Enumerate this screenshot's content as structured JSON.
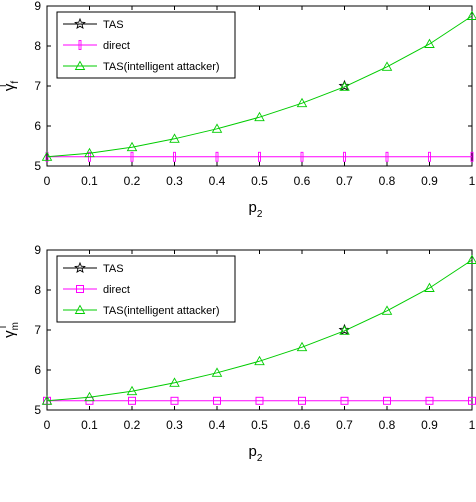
{
  "chart_data": [
    {
      "type": "line",
      "xlabel": "p",
      "xlabel_sub": "2",
      "ylabel": "γ",
      "ylabel_sub": "f",
      "ylabel_sup": "l",
      "xlim": [
        0,
        1
      ],
      "ylim": [
        5,
        9
      ],
      "xticks": [
        "0",
        "0.1",
        "0.2",
        "0.3",
        "0.4",
        "0.5",
        "0.6",
        "0.7",
        "0.8",
        "0.9",
        "1"
      ],
      "yticks": [
        "5",
        "6",
        "7",
        "8",
        "9"
      ],
      "grid": false,
      "legend_position": "top-left",
      "x": [
        0,
        0.1,
        0.2,
        0.3,
        0.4,
        0.5,
        0.6,
        0.7,
        0.8,
        0.9,
        1
      ],
      "series": [
        {
          "name": "TAS",
          "color": "#000000",
          "marker": "star",
          "x": [
            0.7
          ],
          "values": [
            7.0
          ]
        },
        {
          "name": "direct",
          "color": "#ff00ff",
          "marker": "vbar",
          "values": [
            5.23,
            5.23,
            5.23,
            5.23,
            5.23,
            5.23,
            5.23,
            5.23,
            5.23,
            5.23,
            5.23
          ]
        },
        {
          "name": "TAS(intelligent attacker)",
          "color": "#00cc00",
          "marker": "triangle",
          "values": [
            5.23,
            5.32,
            5.47,
            5.68,
            5.93,
            6.22,
            6.57,
            6.98,
            7.48,
            8.05,
            8.75
          ]
        }
      ]
    },
    {
      "type": "line",
      "xlabel": "p",
      "xlabel_sub": "2",
      "ylabel": "γ",
      "ylabel_sub": "m",
      "ylabel_sup": "l",
      "xlim": [
        0,
        1
      ],
      "ylim": [
        5,
        9
      ],
      "xticks": [
        "0",
        "0.1",
        "0.2",
        "0.3",
        "0.4",
        "0.5",
        "0.6",
        "0.7",
        "0.8",
        "0.9",
        "1"
      ],
      "yticks": [
        "5",
        "6",
        "7",
        "8",
        "9"
      ],
      "grid": false,
      "legend_position": "top-left",
      "x": [
        0,
        0.1,
        0.2,
        0.3,
        0.4,
        0.5,
        0.6,
        0.7,
        0.8,
        0.9,
        1
      ],
      "series": [
        {
          "name": "TAS",
          "color": "#000000",
          "marker": "star",
          "x": [
            0.7
          ],
          "values": [
            7.0
          ]
        },
        {
          "name": "direct",
          "color": "#ff00ff",
          "marker": "square",
          "values": [
            5.23,
            5.23,
            5.23,
            5.23,
            5.23,
            5.23,
            5.23,
            5.23,
            5.23,
            5.23,
            5.23
          ]
        },
        {
          "name": "TAS(intelligent attacker)",
          "color": "#00cc00",
          "marker": "triangle",
          "values": [
            5.23,
            5.32,
            5.47,
            5.68,
            5.93,
            6.22,
            6.57,
            6.98,
            7.48,
            8.05,
            8.75
          ]
        }
      ]
    }
  ]
}
